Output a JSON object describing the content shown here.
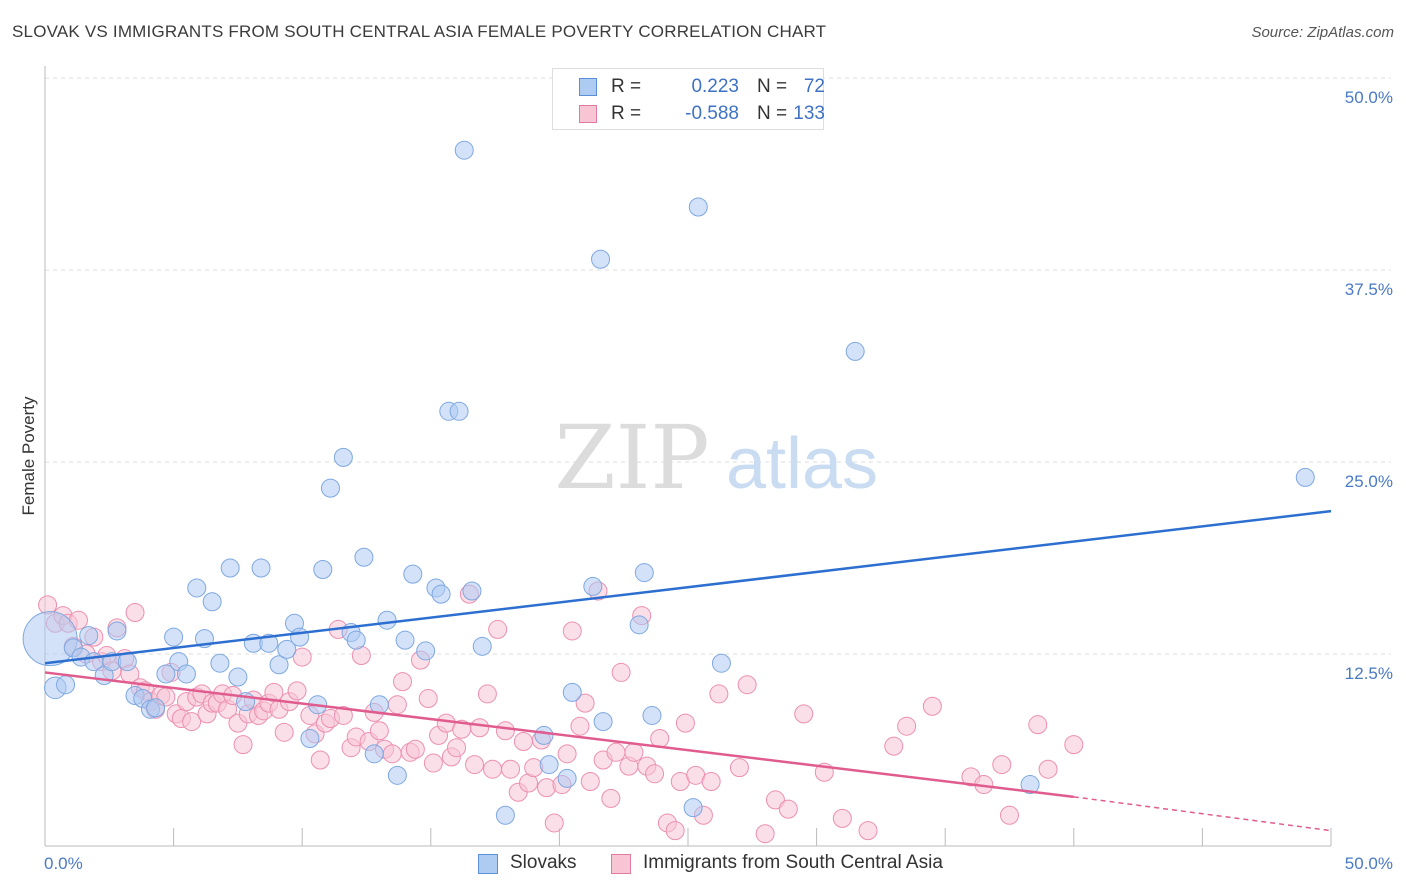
{
  "title": "SLOVAK VS IMMIGRANTS FROM SOUTH CENTRAL ASIA FEMALE POVERTY CORRELATION CHART",
  "source": "Source: ZipAtlas.com",
  "watermark": {
    "zip": "ZIP",
    "atlas": "atlas"
  },
  "legend_top": {
    "rows": [
      {
        "r_label": "R =",
        "r_value": "0.223",
        "n_label": "N =",
        "n_value": "72",
        "color": "#aecbf2",
        "border": "#5b8fd6"
      },
      {
        "r_label": "R =",
        "r_value": "-0.588",
        "n_label": "N =",
        "n_value": "133",
        "color": "#f8c5d5",
        "border": "#e07aa0"
      }
    ]
  },
  "legend_bottom": [
    {
      "label": "Slovaks",
      "color": "#aecbf2",
      "border": "#5b8fd6"
    },
    {
      "label": "Immigrants from South Central Asia",
      "color": "#f8c5d5",
      "border": "#e07aa0"
    }
  ],
  "chart_data": {
    "type": "scatter",
    "title": "SLOVAK VS IMMIGRANTS FROM SOUTH CENTRAL ASIA FEMALE POVERTY CORRELATION CHART",
    "xlabel": "",
    "ylabel": "Female Poverty",
    "xlim": [
      0,
      50
    ],
    "ylim": [
      0,
      50
    ],
    "x_tick_labels": [
      "0.0%",
      "50.0%"
    ],
    "y_tick_labels": [
      "12.5%",
      "25.0%",
      "37.5%",
      "50.0%"
    ],
    "y_ticks": [
      12.5,
      25,
      37.5,
      50
    ],
    "grid": true,
    "legend_placement": "top-center",
    "series": [
      {
        "name": "Slovaks",
        "color": "#7ea8e0",
        "fill": "#aecbf2",
        "trend": {
          "x": [
            0,
            50
          ],
          "y": [
            11.9,
            21.8
          ],
          "color": "#2d6fd0"
        },
        "points": [
          [
            0.2,
            13.5
          ],
          [
            0.4,
            10.3
          ],
          [
            0.8,
            10.5
          ],
          [
            1.1,
            12.9
          ],
          [
            1.4,
            12.3
          ],
          [
            1.7,
            13.7
          ],
          [
            1.9,
            12.0
          ],
          [
            2.3,
            11.1
          ],
          [
            2.6,
            12.0
          ],
          [
            2.8,
            14.0
          ],
          [
            3.2,
            12.0
          ],
          [
            3.5,
            9.8
          ],
          [
            3.8,
            9.6
          ],
          [
            4.1,
            8.9
          ],
          [
            4.3,
            9.0
          ],
          [
            4.7,
            11.2
          ],
          [
            5.0,
            13.6
          ],
          [
            5.2,
            12.0
          ],
          [
            5.5,
            11.2
          ],
          [
            5.9,
            16.8
          ],
          [
            6.2,
            13.5
          ],
          [
            6.5,
            15.9
          ],
          [
            6.8,
            11.9
          ],
          [
            7.2,
            18.1
          ],
          [
            7.5,
            11.0
          ],
          [
            7.8,
            9.4
          ],
          [
            8.1,
            13.2
          ],
          [
            8.4,
            18.1
          ],
          [
            8.7,
            13.2
          ],
          [
            9.1,
            11.8
          ],
          [
            9.4,
            12.8
          ],
          [
            9.7,
            14.5
          ],
          [
            9.9,
            13.6
          ],
          [
            10.3,
            7.0
          ],
          [
            10.6,
            9.2
          ],
          [
            10.8,
            18.0
          ],
          [
            11.1,
            23.3
          ],
          [
            11.6,
            25.3
          ],
          [
            11.9,
            13.9
          ],
          [
            12.1,
            13.4
          ],
          [
            12.4,
            18.8
          ],
          [
            12.8,
            6.0
          ],
          [
            13.0,
            9.2
          ],
          [
            13.3,
            14.7
          ],
          [
            13.7,
            4.6
          ],
          [
            14.0,
            13.4
          ],
          [
            14.3,
            17.7
          ],
          [
            14.8,
            12.7
          ],
          [
            15.2,
            16.8
          ],
          [
            15.4,
            16.4
          ],
          [
            15.7,
            28.3
          ],
          [
            16.1,
            28.3
          ],
          [
            16.3,
            45.3
          ],
          [
            16.6,
            16.6
          ],
          [
            17.0,
            13.0
          ],
          [
            17.9,
            2.0
          ],
          [
            19.4,
            7.2
          ],
          [
            19.6,
            5.3
          ],
          [
            20.3,
            4.4
          ],
          [
            20.5,
            10.0
          ],
          [
            21.3,
            16.9
          ],
          [
            21.6,
            38.2
          ],
          [
            21.7,
            8.1
          ],
          [
            23.1,
            14.4
          ],
          [
            23.3,
            17.8
          ],
          [
            23.6,
            8.5
          ],
          [
            25.2,
            2.5
          ],
          [
            25.4,
            41.6
          ],
          [
            26.3,
            11.9
          ],
          [
            31.5,
            32.2
          ],
          [
            38.3,
            4.0
          ],
          [
            49.0,
            24.0
          ]
        ],
        "sizes": [
          30,
          12,
          10,
          10,
          10,
          10,
          10,
          10,
          10,
          10,
          10,
          10,
          10,
          10,
          10,
          10,
          10,
          10,
          10,
          10,
          10,
          10,
          10,
          10,
          10,
          10,
          10,
          10,
          10,
          10,
          10,
          10,
          10,
          10,
          10,
          10,
          10,
          10,
          10,
          10,
          10,
          10,
          10,
          10,
          10,
          10,
          10,
          10,
          10,
          10,
          10,
          10,
          10,
          10,
          10,
          10,
          10,
          10,
          10,
          10,
          10,
          10,
          10,
          10,
          10,
          10,
          10,
          10,
          10,
          10,
          10,
          10
        ]
      },
      {
        "name": "Immigrants from South Central Asia",
        "color": "#ec8fb0",
        "fill": "#f8c5d5",
        "trend": {
          "x": [
            0,
            40
          ],
          "y": [
            11.3,
            3.2
          ],
          "color": "#e05c8e",
          "dashed_extension": {
            "x": [
              40,
              50
            ],
            "y": [
              3.2,
              1.0
            ]
          }
        },
        "points": [
          [
            0.1,
            15.7
          ],
          [
            0.4,
            14.5
          ],
          [
            0.7,
            15.0
          ],
          [
            0.9,
            14.5
          ],
          [
            1.1,
            13.0
          ],
          [
            1.3,
            14.7
          ],
          [
            1.6,
            12.5
          ],
          [
            1.9,
            13.6
          ],
          [
            2.2,
            12.0
          ],
          [
            2.4,
            12.4
          ],
          [
            2.6,
            11.4
          ],
          [
            2.8,
            14.2
          ],
          [
            3.1,
            12.2
          ],
          [
            3.3,
            11.2
          ],
          [
            3.5,
            15.2
          ],
          [
            3.7,
            10.3
          ],
          [
            3.9,
            10.1
          ],
          [
            4.1,
            9.4
          ],
          [
            4.3,
            8.9
          ],
          [
            4.5,
            9.8
          ],
          [
            4.7,
            9.7
          ],
          [
            4.9,
            11.3
          ],
          [
            5.1,
            8.6
          ],
          [
            5.3,
            8.3
          ],
          [
            5.5,
            9.4
          ],
          [
            5.7,
            8.1
          ],
          [
            5.9,
            9.7
          ],
          [
            6.1,
            9.9
          ],
          [
            6.3,
            8.6
          ],
          [
            6.5,
            9.3
          ],
          [
            6.7,
            9.3
          ],
          [
            6.9,
            9.9
          ],
          [
            7.1,
            8.9
          ],
          [
            7.3,
            9.8
          ],
          [
            7.5,
            8.0
          ],
          [
            7.7,
            6.6
          ],
          [
            7.9,
            8.6
          ],
          [
            8.1,
            9.5
          ],
          [
            8.3,
            8.5
          ],
          [
            8.5,
            8.8
          ],
          [
            8.7,
            9.3
          ],
          [
            8.9,
            10.0
          ],
          [
            9.1,
            8.9
          ],
          [
            9.3,
            7.4
          ],
          [
            9.5,
            9.4
          ],
          [
            9.8,
            10.1
          ],
          [
            10.0,
            12.3
          ],
          [
            10.3,
            8.5
          ],
          [
            10.5,
            7.3
          ],
          [
            10.7,
            5.6
          ],
          [
            10.9,
            8.0
          ],
          [
            11.1,
            8.3
          ],
          [
            11.4,
            14.1
          ],
          [
            11.6,
            8.5
          ],
          [
            11.9,
            6.4
          ],
          [
            12.1,
            7.1
          ],
          [
            12.3,
            12.4
          ],
          [
            12.6,
            6.8
          ],
          [
            12.8,
            8.7
          ],
          [
            13.0,
            7.5
          ],
          [
            13.2,
            6.3
          ],
          [
            13.5,
            6.0
          ],
          [
            13.7,
            9.2
          ],
          [
            13.9,
            10.7
          ],
          [
            14.2,
            6.1
          ],
          [
            14.4,
            6.3
          ],
          [
            14.6,
            12.1
          ],
          [
            14.9,
            9.6
          ],
          [
            15.1,
            5.4
          ],
          [
            15.3,
            7.2
          ],
          [
            15.6,
            8.0
          ],
          [
            15.8,
            5.8
          ],
          [
            16.0,
            6.4
          ],
          [
            16.2,
            7.6
          ],
          [
            16.5,
            16.4
          ],
          [
            16.7,
            5.3
          ],
          [
            16.9,
            7.7
          ],
          [
            17.2,
            9.9
          ],
          [
            17.4,
            5.0
          ],
          [
            17.6,
            14.1
          ],
          [
            17.9,
            7.5
          ],
          [
            18.1,
            5.0
          ],
          [
            18.4,
            3.5
          ],
          [
            18.6,
            6.8
          ],
          [
            18.8,
            4.1
          ],
          [
            19.0,
            5.1
          ],
          [
            19.3,
            6.9
          ],
          [
            19.5,
            3.8
          ],
          [
            19.8,
            1.5
          ],
          [
            20.1,
            4.0
          ],
          [
            20.3,
            6.0
          ],
          [
            20.5,
            14.0
          ],
          [
            20.8,
            7.8
          ],
          [
            21.0,
            9.3
          ],
          [
            21.2,
            4.2
          ],
          [
            21.5,
            16.6
          ],
          [
            21.7,
            5.6
          ],
          [
            22.0,
            3.1
          ],
          [
            22.2,
            6.1
          ],
          [
            22.4,
            11.3
          ],
          [
            22.7,
            5.2
          ],
          [
            22.9,
            6.1
          ],
          [
            23.2,
            15.0
          ],
          [
            23.4,
            5.2
          ],
          [
            23.7,
            4.7
          ],
          [
            23.9,
            7.0
          ],
          [
            24.2,
            1.5
          ],
          [
            24.5,
            1.0
          ],
          [
            24.7,
            4.2
          ],
          [
            24.9,
            8.0
          ],
          [
            25.3,
            4.6
          ],
          [
            25.6,
            2.0
          ],
          [
            25.9,
            4.2
          ],
          [
            26.2,
            9.9
          ],
          [
            27.0,
            5.1
          ],
          [
            27.3,
            10.5
          ],
          [
            28.0,
            0.8
          ],
          [
            28.4,
            3.0
          ],
          [
            28.9,
            2.4
          ],
          [
            29.5,
            8.6
          ],
          [
            30.3,
            4.8
          ],
          [
            31.0,
            1.8
          ],
          [
            32.0,
            1.0
          ],
          [
            33.0,
            6.5
          ],
          [
            33.5,
            7.8
          ],
          [
            34.5,
            9.1
          ],
          [
            36.0,
            4.5
          ],
          [
            36.5,
            4.0
          ],
          [
            37.2,
            5.3
          ],
          [
            37.5,
            2.0
          ],
          [
            38.6,
            7.9
          ],
          [
            39.0,
            5.0
          ],
          [
            40.0,
            6.6
          ]
        ],
        "sizes": []
      }
    ]
  }
}
